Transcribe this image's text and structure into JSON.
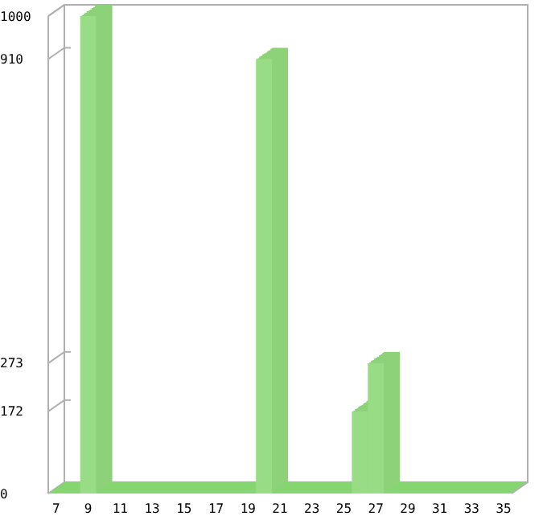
{
  "chart_data": {
    "type": "bar",
    "categories": [
      "7",
      null,
      "9",
      null,
      "11",
      null,
      "13",
      null,
      "15",
      null,
      "17",
      null,
      "19",
      null,
      "21",
      null,
      "23",
      null,
      "25",
      null,
      "27",
      null,
      "29",
      null,
      "31",
      null,
      "33",
      null,
      "35"
    ],
    "values": [
      0,
      0,
      1000,
      0,
      0,
      0,
      0,
      0,
      0,
      0,
      0,
      0,
      0,
      910,
      0,
      0,
      0,
      0,
      0,
      172,
      273,
      0,
      0,
      0,
      0,
      0,
      0,
      0,
      0
    ],
    "color": "#98dc86",
    "ylim": [
      0,
      1000
    ],
    "yticks": [
      0,
      172,
      273,
      910,
      1000
    ],
    "grid": false
  }
}
